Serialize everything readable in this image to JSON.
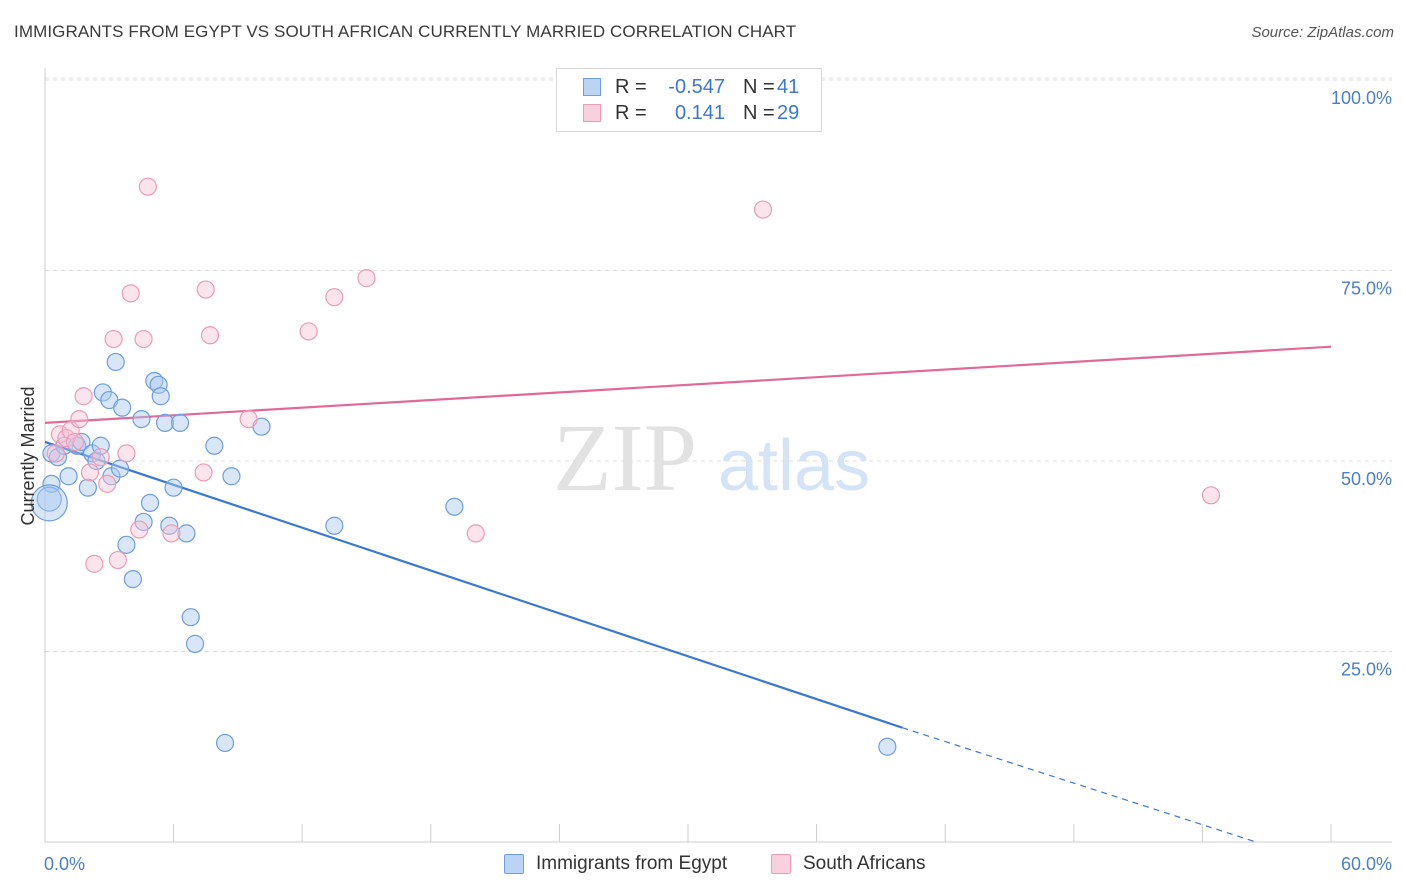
{
  "title": "IMMIGRANTS FROM EGYPT VS SOUTH AFRICAN CURRENTLY MARRIED CORRELATION CHART",
  "source": "Source: ZipAtlas.com",
  "watermark": {
    "zip": "ZIP",
    "atlas": "atlas"
  },
  "colors": {
    "blue": "#3b78d0",
    "blue_fill": "#a9c8ef",
    "blue_stroke": "#6d9ee0",
    "pink": "#e0699a",
    "pink_fill": "#f7c3d4",
    "pink_stroke": "#ec9bb8",
    "tick_text": "#4a7fc9"
  },
  "legend": {
    "rows": [
      {
        "r_label": "R =",
        "r_value": "-0.547",
        "n_label": "N =",
        "n_value": "41"
      },
      {
        "r_label": "R =",
        "r_value": "0.141",
        "n_label": "N =",
        "n_value": "29"
      }
    ]
  },
  "bottom_legend": {
    "items": [
      {
        "label": "Immigrants from Egypt"
      },
      {
        "label": "South Africans"
      }
    ]
  },
  "chart_data": {
    "type": "scatter",
    "ylabel": "Currently Married",
    "xlim": [
      0,
      60
    ],
    "ylim": [
      0,
      100
    ],
    "x_tick_labels": [
      "0.0%",
      "60.0%"
    ],
    "y_ticks": [
      {
        "value": 100,
        "label": "100.0%"
      },
      {
        "value": 75,
        "label": "75.0%"
      },
      {
        "value": 50,
        "label": "50.0%"
      },
      {
        "value": 25,
        "label": "25.0%"
      }
    ],
    "grid": true,
    "series": [
      {
        "name": "Immigrants from Egypt",
        "color": "blue",
        "points": [
          [
            0.3,
            47
          ],
          [
            0.3,
            51
          ],
          [
            0.6,
            50.5
          ],
          [
            0.9,
            52
          ],
          [
            1.1,
            48
          ],
          [
            1.5,
            52
          ],
          [
            1.7,
            52.5
          ],
          [
            2.0,
            46.5
          ],
          [
            2.2,
            51
          ],
          [
            2.4,
            50
          ],
          [
            2.6,
            52
          ],
          [
            2.7,
            59
          ],
          [
            3.0,
            58
          ],
          [
            3.1,
            48
          ],
          [
            3.3,
            63
          ],
          [
            3.5,
            49
          ],
          [
            3.6,
            57
          ],
          [
            3.8,
            39
          ],
          [
            4.1,
            34.5
          ],
          [
            4.5,
            55.5
          ],
          [
            4.6,
            42
          ],
          [
            4.9,
            44.5
          ],
          [
            5.1,
            60.5
          ],
          [
            5.3,
            60
          ],
          [
            5.4,
            58.5
          ],
          [
            5.6,
            55
          ],
          [
            5.8,
            41.5
          ],
          [
            6.0,
            46.5
          ],
          [
            6.3,
            55
          ],
          [
            6.6,
            40.5
          ],
          [
            6.8,
            29.5
          ],
          [
            7.0,
            26
          ],
          [
            7.9,
            52
          ],
          [
            8.4,
            13
          ],
          [
            8.7,
            48
          ],
          [
            10.1,
            54.5
          ],
          [
            13.5,
            41.5
          ],
          [
            19.1,
            44
          ],
          [
            39.3,
            12.5
          ],
          [
            0.2,
            45
          ],
          [
            0.2,
            44.5
          ]
        ],
        "trend": {
          "x0": 0,
          "y0": 52.5,
          "x1": 40,
          "y1": 15.0,
          "dash_to_x": 56.5,
          "dash_to_y": 0
        }
      },
      {
        "name": "South Africans",
        "color": "pink",
        "points": [
          [
            0.5,
            51
          ],
          [
            0.7,
            53.5
          ],
          [
            1.0,
            53
          ],
          [
            1.2,
            54
          ],
          [
            1.4,
            52.5
          ],
          [
            1.6,
            55.5
          ],
          [
            1.8,
            58.5
          ],
          [
            2.1,
            48.5
          ],
          [
            2.3,
            36.5
          ],
          [
            2.6,
            50.5
          ],
          [
            2.9,
            47
          ],
          [
            3.2,
            66
          ],
          [
            3.4,
            37
          ],
          [
            3.8,
            51
          ],
          [
            4.0,
            72
          ],
          [
            4.4,
            41
          ],
          [
            4.6,
            66
          ],
          [
            4.8,
            86
          ],
          [
            5.9,
            40.5
          ],
          [
            7.4,
            48.5
          ],
          [
            7.5,
            72.5
          ],
          [
            7.7,
            66.5
          ],
          [
            9.5,
            55.5
          ],
          [
            12.3,
            67
          ],
          [
            13.5,
            71.5
          ],
          [
            15.0,
            74
          ],
          [
            20.1,
            40.5
          ],
          [
            33.5,
            83
          ],
          [
            54.4,
            45.5
          ]
        ],
        "trend": {
          "x0": 0,
          "y0": 55.0,
          "x1": 60,
          "y1": 65.0
        }
      }
    ]
  }
}
